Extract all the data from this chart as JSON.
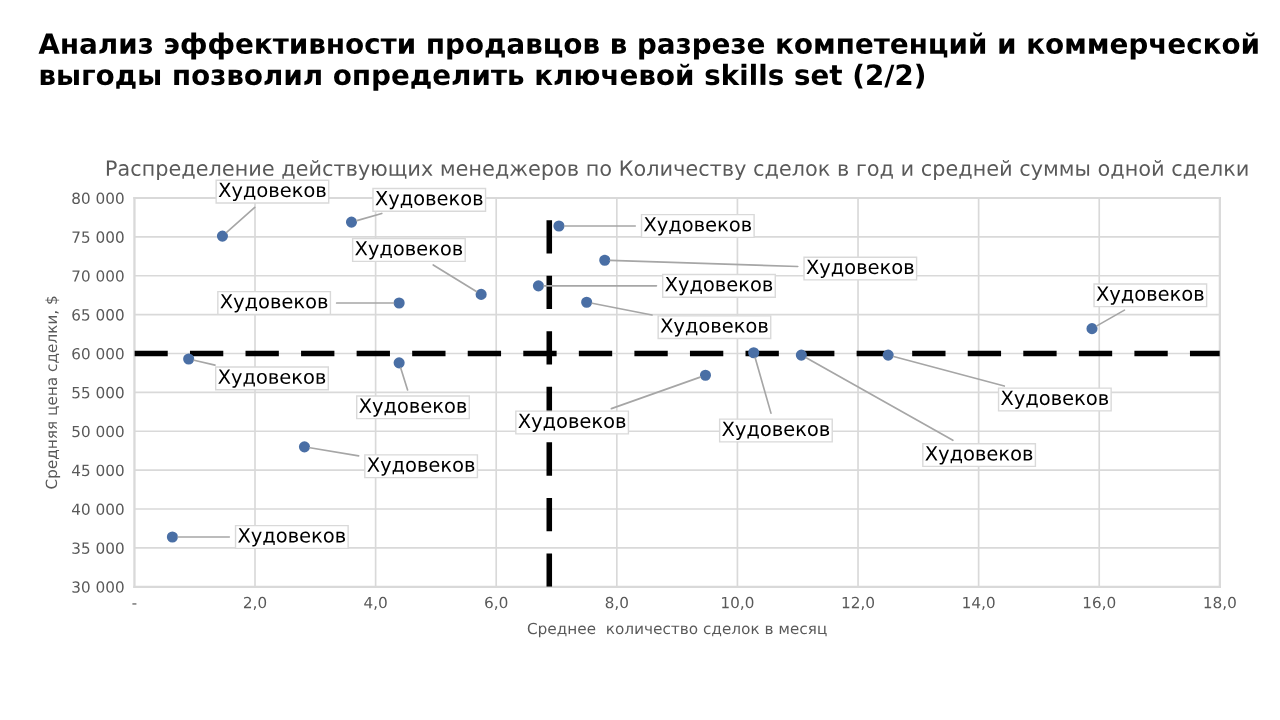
{
  "chart_data": {
    "type": "scatter",
    "title": "Анализ эффективности продавцов в разрезе компетенций и коммерческой выгоды позволил определить ключевой skills set (2/2)",
    "subtitle": "Распределение действующих менеджеров по Количеству сделок в год и средней суммы одной сделки",
    "xlabel": "Среднее  количество сделок в месяц",
    "ylabel": "Средняя цена сделки, $",
    "series": [
      {
        "color": "#4a6fa5",
        "x": [
          1.46,
          3.6,
          5.75,
          4.39,
          0.9,
          4.39,
          2.82,
          0.63,
          7.04,
          7.8,
          6.7,
          7.5,
          9.47,
          10.27,
          11.06,
          12.5,
          15.88
        ],
        "values": [
          75100,
          76900,
          67600,
          66500,
          59300,
          58800,
          48000,
          36400,
          76400,
          72000,
          68700,
          66600,
          57200,
          60100,
          59800,
          59800,
          63200
        ]
      }
    ],
    "annotations": [
      {
        "text": "Худовеков",
        "x": 1.46,
        "y": 75100
      },
      {
        "text": "Худовеков",
        "x": 3.6,
        "y": 76900
      },
      {
        "text": "Худовеков",
        "x": 5.75,
        "y": 67600
      },
      {
        "text": "Худовеков",
        "x": 4.39,
        "y": 66500
      },
      {
        "text": "Худовеков",
        "x": 0.9,
        "y": 59300
      },
      {
        "text": "Худовеков",
        "x": 4.39,
        "y": 58800
      },
      {
        "text": "Худовеков",
        "x": 2.82,
        "y": 48000
      },
      {
        "text": "Худовеков",
        "x": 0.63,
        "y": 36400
      },
      {
        "text": "Худовеков",
        "x": 7.04,
        "y": 76400
      },
      {
        "text": "Худовеков",
        "x": 7.8,
        "y": 72000
      },
      {
        "text": "Худовеков",
        "x": 6.7,
        "y": 68700
      },
      {
        "text": "Худовеков",
        "x": 7.5,
        "y": 66600
      },
      {
        "text": "Худовеков",
        "x": 9.47,
        "y": 57200
      },
      {
        "text": "Худовеков",
        "x": 10.27,
        "y": 60100
      },
      {
        "text": "Худовеков",
        "x": 11.06,
        "y": 59800
      },
      {
        "text": "Худовеков",
        "x": 12.5,
        "y": 59800
      },
      {
        "text": "Худовеков",
        "x": 15.88,
        "y": 63200
      }
    ],
    "ref_lines": [
      {
        "axis": "x",
        "value": 6.88,
        "color": "#000000",
        "line_style": "dashed"
      },
      {
        "axis": "y",
        "value": 60000,
        "color": "#000000",
        "line_style": "dashed"
      }
    ],
    "xlim": [
      0,
      18
    ],
    "ylim": [
      30000,
      80000
    ],
    "xticks": [
      {
        "value": 0,
        "label": "-"
      },
      {
        "value": 2,
        "label": "2,0"
      },
      {
        "value": 4,
        "label": "4,0"
      },
      {
        "value": 6,
        "label": "6,0"
      },
      {
        "value": 8,
        "label": "8,0"
      },
      {
        "value": 10,
        "label": "10,0"
      },
      {
        "value": 12,
        "label": "12,0"
      },
      {
        "value": 14,
        "label": "14,0"
      },
      {
        "value": 16,
        "label": "16,0"
      },
      {
        "value": 18,
        "label": "18,0"
      }
    ],
    "yticks": [
      {
        "value": 30000,
        "label": "30 000"
      },
      {
        "value": 35000,
        "label": "35 000"
      },
      {
        "value": 40000,
        "label": "40 000"
      },
      {
        "value": 45000,
        "label": "45 000"
      },
      {
        "value": 50000,
        "label": "50 000"
      },
      {
        "value": 55000,
        "label": "55 000"
      },
      {
        "value": 60000,
        "label": "60 000"
      },
      {
        "value": 65000,
        "label": "65 000"
      },
      {
        "value": 70000,
        "label": "70 000"
      },
      {
        "value": 75000,
        "label": "75 000"
      },
      {
        "value": 80000,
        "label": "80 000"
      }
    ],
    "grid": true,
    "marker": "circle",
    "legend": false
  }
}
